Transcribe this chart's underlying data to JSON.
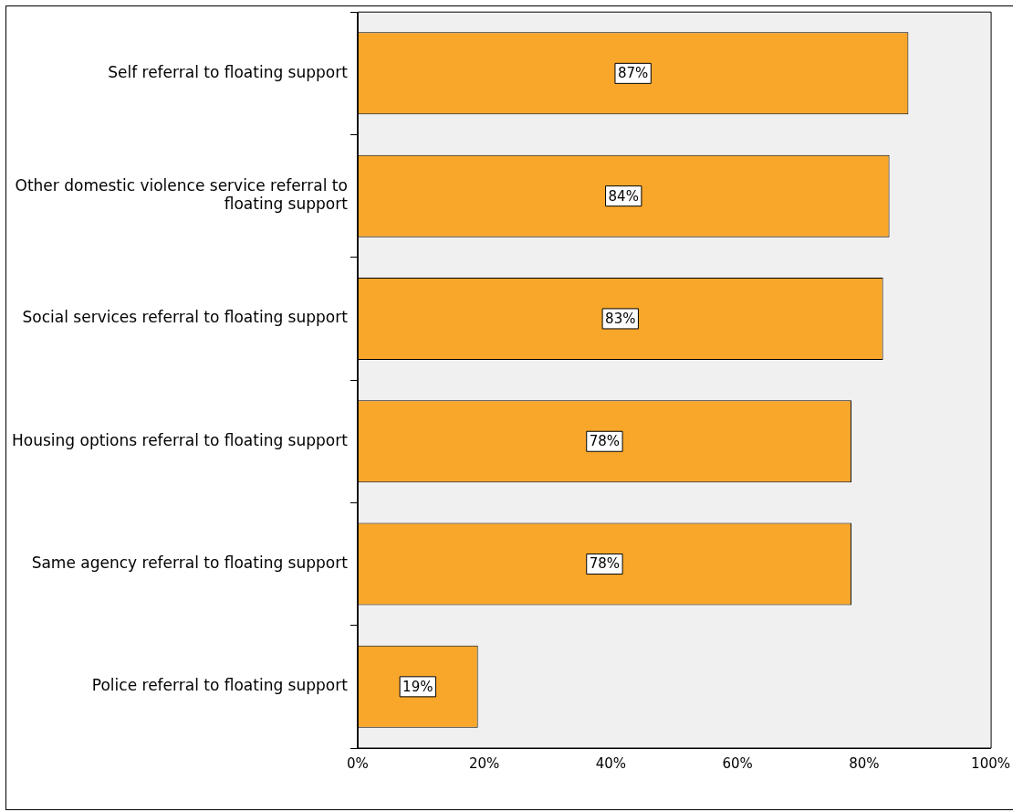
{
  "chart_data": {
    "type": "bar",
    "orientation": "horizontal",
    "categories": [
      "Self referral to floating support",
      "Other domestic violence service referral to floating support",
      "Social services referral to floating support",
      "Housing options referral to floating support",
      "Same agency referral to floating support",
      "Police referral to floating support"
    ],
    "values": [
      87,
      84,
      83,
      78,
      78,
      19
    ],
    "value_labels": [
      "87%",
      "84%",
      "83%",
      "78%",
      "78%",
      "19%"
    ],
    "color": "#f9a72b",
    "xlim": [
      0,
      100
    ],
    "xticks": [
      {
        "value": 0,
        "label": "0%"
      },
      {
        "value": 20,
        "label": "20%"
      },
      {
        "value": 40,
        "label": "40%"
      },
      {
        "value": 60,
        "label": "60%"
      },
      {
        "value": 80,
        "label": "80%"
      },
      {
        "value": 100,
        "label": "100%"
      }
    ],
    "grid": false,
    "legend": false
  }
}
